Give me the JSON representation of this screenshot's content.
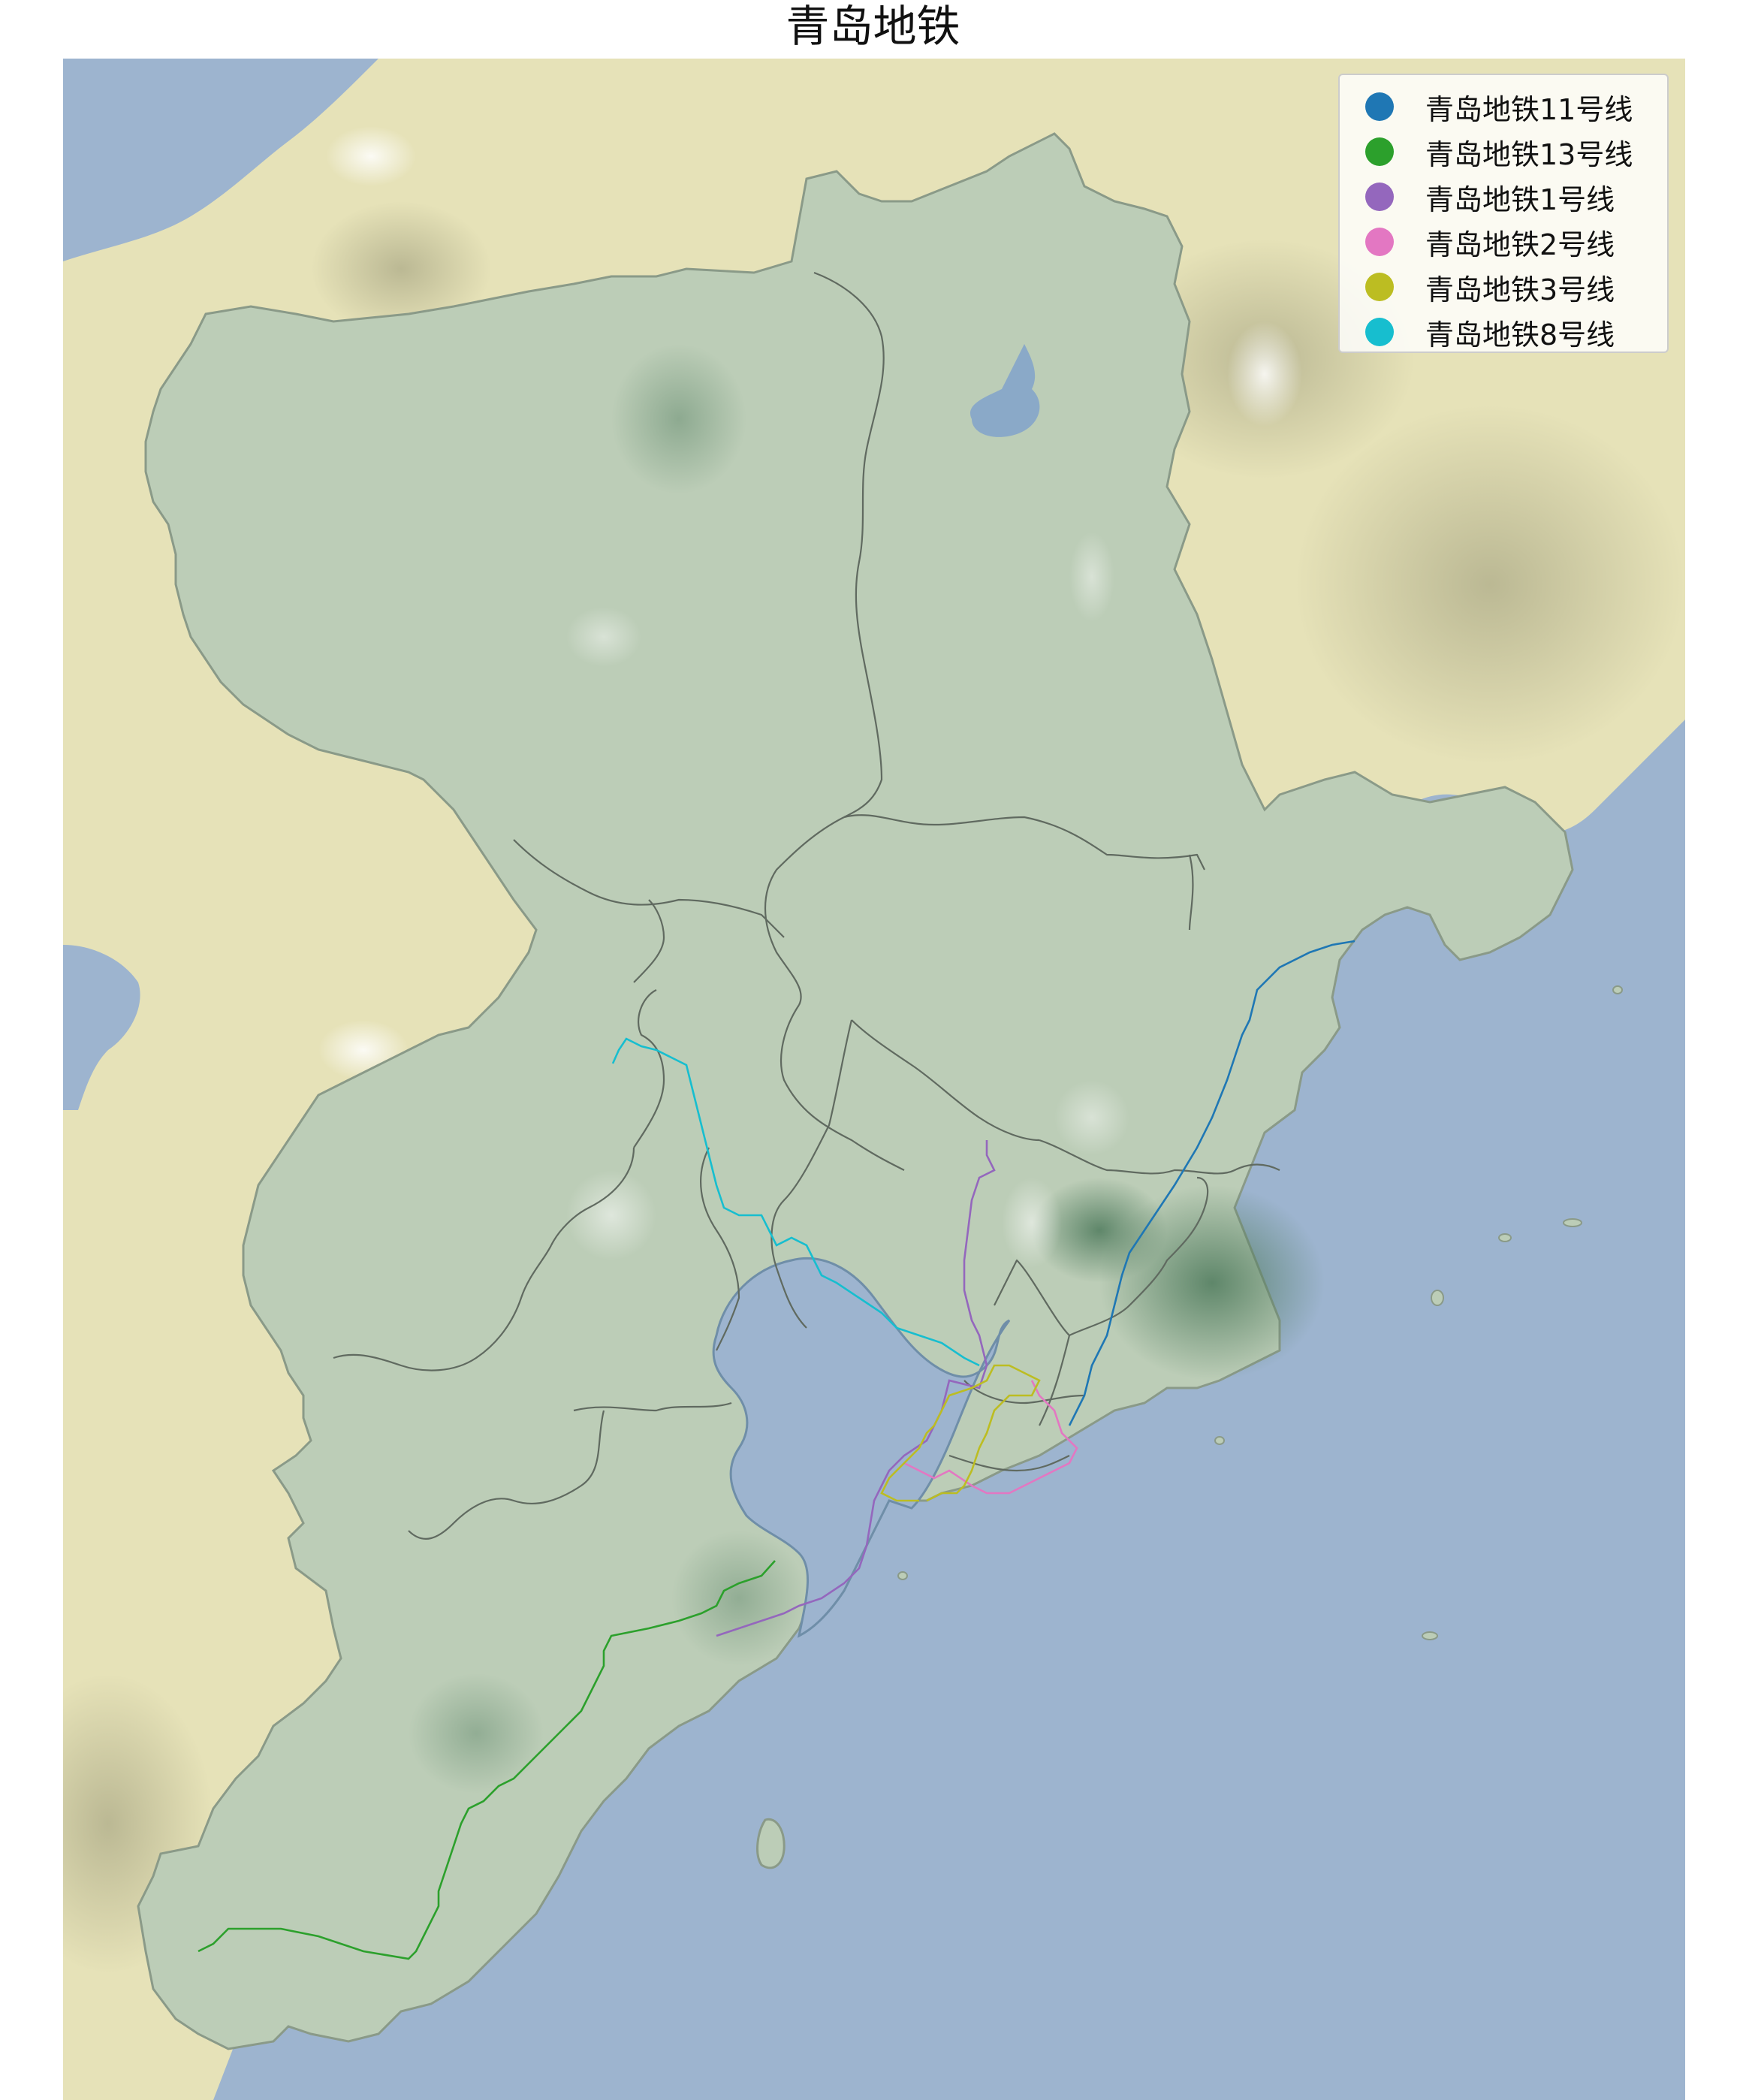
{
  "title": "青岛地铁",
  "map": {
    "colors": {
      "sea": "#9db4cf",
      "land": "#e6e2b8",
      "city_area": "#bccdb7",
      "boundary": "#606a60"
    },
    "background": "shaded-relief terrain"
  },
  "legend": {
    "items": [
      {
        "label": "青岛地铁11号线",
        "color": "#1f77b4"
      },
      {
        "label": "青岛地铁13号线",
        "color": "#2ca02c"
      },
      {
        "label": "青岛地铁1号线",
        "color": "#9467bd"
      },
      {
        "label": "青岛地铁2号线",
        "color": "#e377c2"
      },
      {
        "label": "青岛地铁3号线",
        "color": "#bcbd22"
      },
      {
        "label": "青岛地铁8号线",
        "color": "#17becf"
      }
    ]
  }
}
